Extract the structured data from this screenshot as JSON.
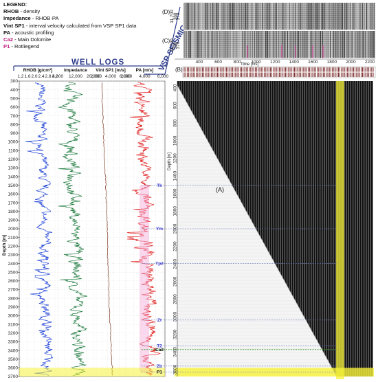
{
  "legend": {
    "title": "LEGEND:",
    "items": [
      {
        "key": "RHOB",
        "desc": "- density",
        "color": "#111111"
      },
      {
        "key": "Impedance",
        "desc": "- RHOB·PA",
        "color": "#111111"
      },
      {
        "key": "Vint SP1",
        "desc": "- interval velocity calculated from VSP SP1 data",
        "color": "#111111"
      },
      {
        "key": "PA",
        "desc": "- acoustic profiling",
        "color": "#111111"
      },
      {
        "key": "Ca2",
        "desc": "- Main Dolomite",
        "color": "#c2187a"
      },
      {
        "key": "P1",
        "desc": "- Rotliegend",
        "color": "#c2187a"
      }
    ]
  },
  "labels": {
    "well_logs": "WELL LOGS",
    "vsp_seismic": "VSP SEISMIC",
    "depth_axis": "Depth [m]",
    "vsp_depth_axis": "Depth [m]",
    "time_axis": "Time [ms]",
    "panel_a": "(A)",
    "panel_b": "(B)",
    "panel_c": "(C)",
    "panel_d": "(D)"
  },
  "tracks": [
    {
      "name": "RHOB",
      "unit": "[g/cm³]",
      "ticks": [
        "1.2",
        "1.6",
        "2.0",
        "2.4",
        "2.8",
        "3.2"
      ],
      "color": "#1b3fd6"
    },
    {
      "name": "Impedance",
      "unit": "",
      "ticks": [
        "4,000",
        "12,000",
        "20,000"
      ],
      "color": "#1e7a3e"
    },
    {
      "name": "Vint SP1",
      "unit": "[m/s]",
      "ticks": [
        "2,000",
        "4,000",
        "6,000"
      ],
      "color": "#7a3a22"
    },
    {
      "name": "PA",
      "unit": "[m/s]",
      "ticks": [
        "2,000",
        "4,000",
        "6,000"
      ],
      "color": "#e02020"
    }
  ],
  "depth_ticks": [
    "300",
    "400",
    "500",
    "600",
    "700",
    "800",
    "900",
    "1000",
    "1100",
    "1200",
    "1300",
    "1400",
    "1500",
    "1600",
    "1700",
    "1800",
    "1900",
    "2000",
    "2100",
    "2200",
    "2300",
    "2400",
    "2500",
    "2600",
    "2700",
    "2800",
    "2900",
    "3000",
    "3100",
    "3200",
    "3300",
    "3400",
    "3500",
    "3600",
    "3700"
  ],
  "vsp_depth_ticks": [
    "400",
    "600",
    "800",
    "1000",
    "1200",
    "1400",
    "1600",
    "1800",
    "2000",
    "2200",
    "2400",
    "2600",
    "2800",
    "3000",
    "3200",
    "3400",
    "3600"
  ],
  "time_ticks": [
    "400",
    "600",
    "800",
    "1000",
    "1200",
    "1400",
    "1600",
    "1800",
    "2000",
    "2200"
  ],
  "trace_labels_d": [
    "380",
    "370",
    "11,700"
  ],
  "trace_labels_c": [
    "380",
    "370",
    "11,700"
  ],
  "horizons": [
    {
      "name": "Tk",
      "depth": 1500,
      "color": "#3a3ad0"
    },
    {
      "name": "Ym",
      "depth": 2000,
      "color": "#3a3ad0"
    },
    {
      "name": "Tp2",
      "depth": 2400,
      "color": "#3a3ad0"
    },
    {
      "name": "Zt",
      "depth": 3050,
      "color": "#3a3ad0"
    },
    {
      "name": "T2",
      "depth": 3350,
      "color": "#3a3ad0"
    },
    {
      "name": "Ca2",
      "depth": 3390,
      "color": "#111111"
    },
    {
      "name": "Zb",
      "depth": 3580,
      "color": "#3a3ad0"
    },
    {
      "name": "P1",
      "depth": 3650,
      "color": "#111111"
    }
  ],
  "colors": {
    "highlight": "#f6f23a",
    "grid": "#bdbdbd",
    "header_bar": "#2e3c8c"
  }
}
